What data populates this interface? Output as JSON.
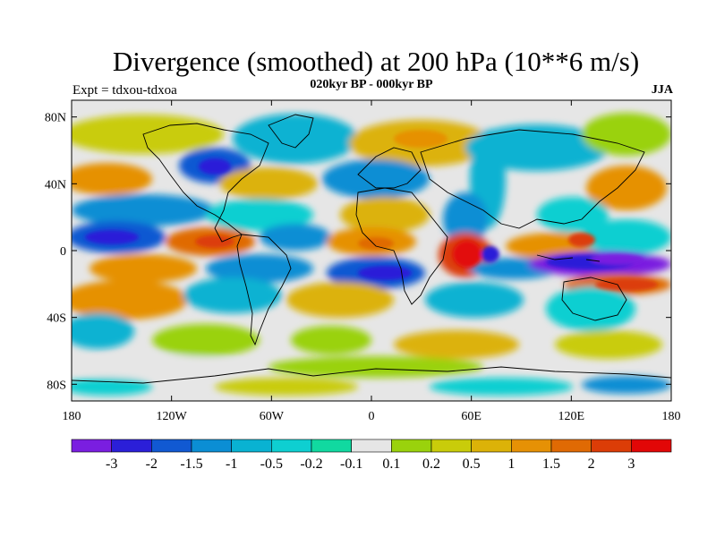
{
  "title": "Divergence (smoothed) at 200 hPa (10**6 m/s)",
  "subtitle": "020kyr BP - 000kyr BP",
  "experiment": "Expt = tdxou-tdxoa",
  "season": "JJA",
  "map": {
    "lat_ticks": [
      "80N",
      "40N",
      "0",
      "40S",
      "80S"
    ],
    "lon_ticks": [
      "180",
      "120W",
      "60W",
      "0",
      "60E",
      "120E",
      "180"
    ],
    "lat_values": [
      80,
      40,
      0,
      -40,
      -80
    ],
    "lon_values": [
      -180,
      -120,
      -60,
      0,
      60,
      120,
      180
    ],
    "lat_range": [
      -90,
      90
    ],
    "lon_range": [
      -180,
      180
    ]
  },
  "colorbar": {
    "colors": [
      "#7a1ee0",
      "#2b1fd8",
      "#1159d2",
      "#0b8ed4",
      "#09b2d2",
      "#0ecfd1",
      "#11d9a0",
      "#e6e6e6",
      "#9ad20c",
      "#c9cc0a",
      "#dcb208",
      "#e69105",
      "#e06a04",
      "#dc3d07",
      "#e20707"
    ],
    "labels": [
      "-3",
      "-2",
      "-1.5",
      "-1",
      "-0.5",
      "-0.2",
      "-0.1",
      "0.1",
      "0.2",
      "0.5",
      "1",
      "1.5",
      "2",
      "3"
    ]
  }
}
